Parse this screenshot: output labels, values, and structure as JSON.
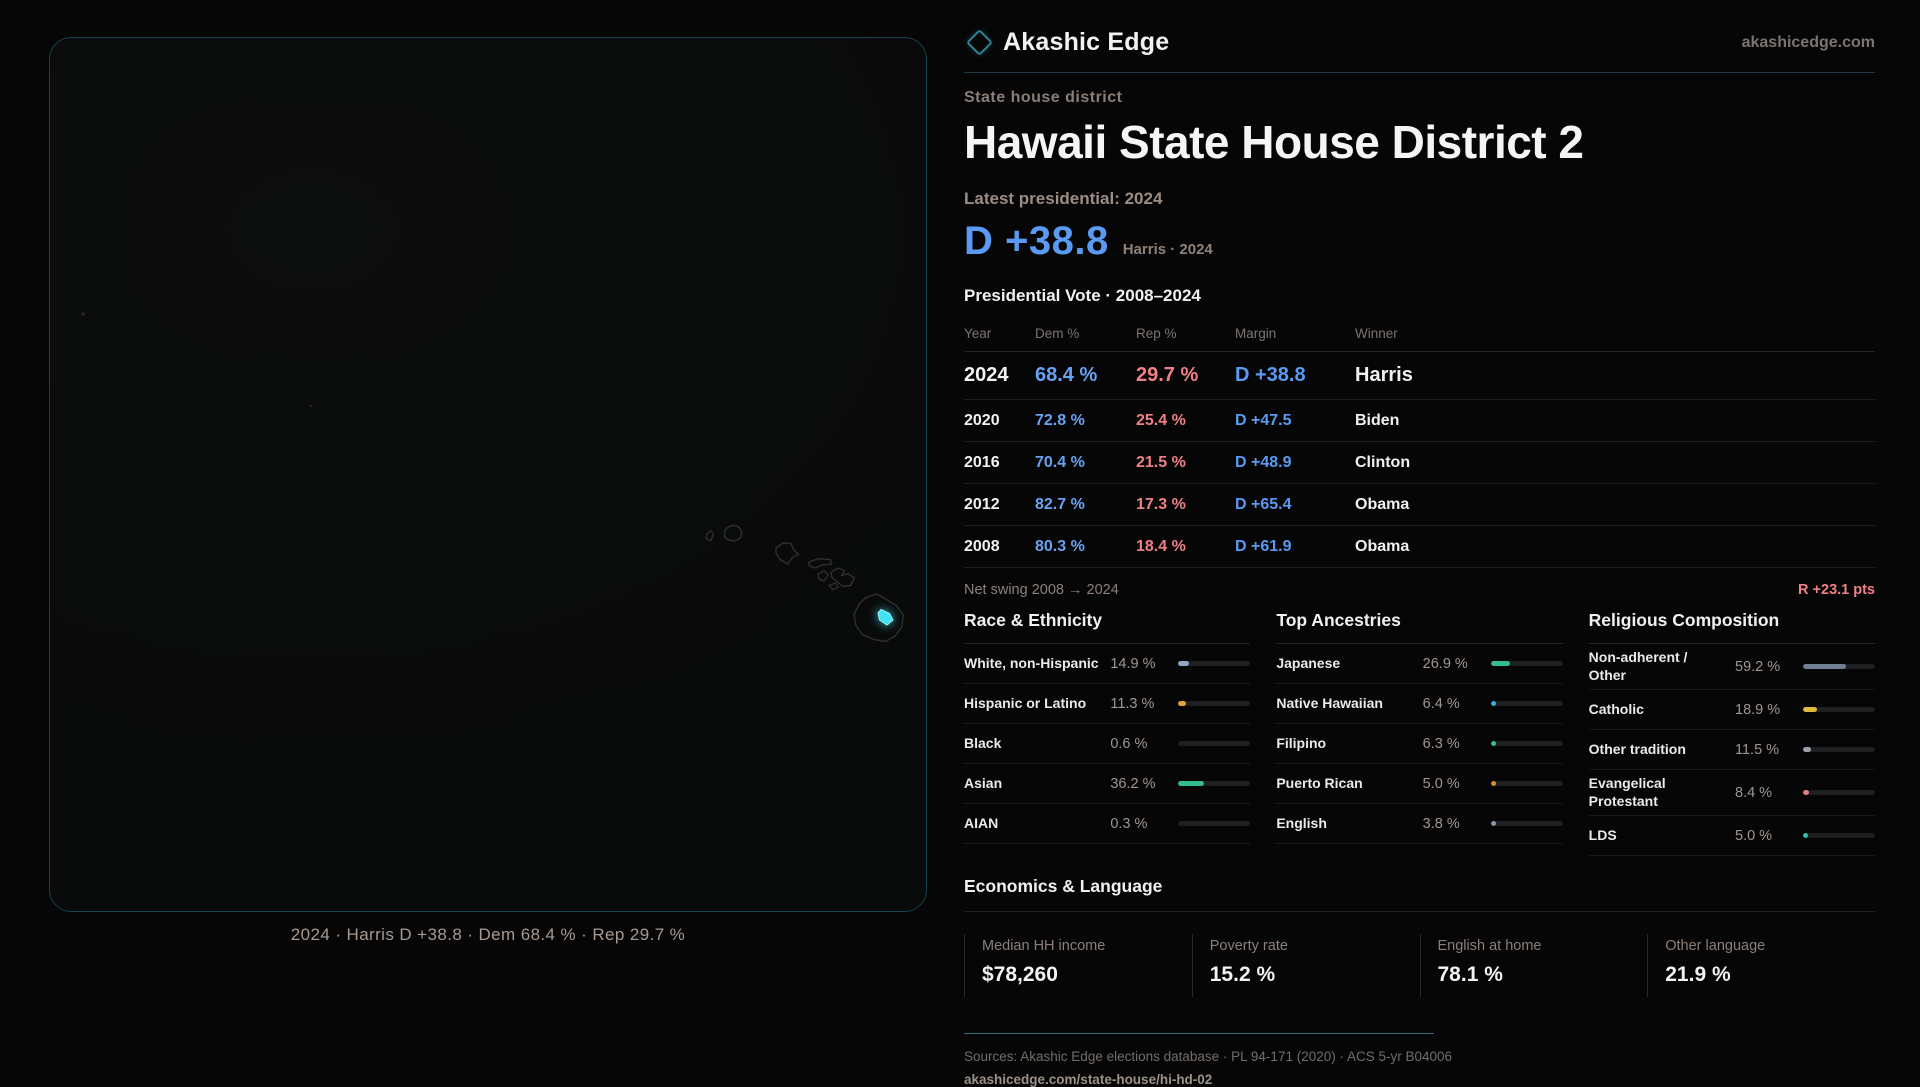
{
  "brand": {
    "name": "Akashic Edge",
    "domain": "akashicedge.com"
  },
  "map": {
    "caption": "2024 · Harris D +38.8 · Dem 68.4 % · Rep 29.7 %",
    "highlight_color": "#3fe3f2",
    "outline_color": "#2e2f30"
  },
  "header": {
    "eyebrow": "State house district",
    "title": "Hawaii State House District 2",
    "latest_label": "Latest presidential: 2024",
    "margin_big": "D +38.8",
    "margin_sub": "Harris · 2024"
  },
  "pres_table": {
    "title": "Presidential Vote · 2008–2024",
    "columns": {
      "year": "Year",
      "dem": "Dem %",
      "rep": "Rep %",
      "margin": "Margin",
      "winner": "Winner"
    },
    "rows": [
      {
        "year": "2024",
        "dem": "68.4 %",
        "rep": "29.7 %",
        "margin": "D +38.8",
        "winner": "Harris"
      },
      {
        "year": "2020",
        "dem": "72.8 %",
        "rep": "25.4 %",
        "margin": "D +47.5",
        "winner": "Biden"
      },
      {
        "year": "2016",
        "dem": "70.4 %",
        "rep": "21.5 %",
        "margin": "D +48.9",
        "winner": "Clinton"
      },
      {
        "year": "2012",
        "dem": "82.7 %",
        "rep": "17.3 %",
        "margin": "D +65.4",
        "winner": "Obama"
      },
      {
        "year": "2008",
        "dem": "80.3 %",
        "rep": "18.4 %",
        "margin": "D +61.9",
        "winner": "Obama"
      }
    ]
  },
  "net_swing": {
    "label": "Net swing 2008 → 2024",
    "value": "R +23.1 pts"
  },
  "demographics": {
    "race": {
      "title": "Race & Ethnicity",
      "rows": [
        {
          "label": "White, non-Hispanic",
          "value": "14.9 %",
          "pct": 14.9,
          "color": "#8fa8c8"
        },
        {
          "label": "Hispanic or Latino",
          "value": "11.3 %",
          "pct": 11.3,
          "color": "#e0a33c"
        },
        {
          "label": "Black",
          "value": "0.6 %",
          "pct": 0.6,
          "color": "#6b7280"
        },
        {
          "label": "Asian",
          "value": "36.2 %",
          "pct": 36.2,
          "color": "#34bd8b"
        },
        {
          "label": "AIAN",
          "value": "0.3 %",
          "pct": 0.3,
          "color": "#6b7280"
        }
      ]
    },
    "ancestries": {
      "title": "Top Ancestries",
      "rows": [
        {
          "label": "Japanese",
          "value": "26.9 %",
          "pct": 26.9,
          "color": "#34bd8b"
        },
        {
          "label": "Native Hawaiian",
          "value": "6.4 %",
          "pct": 6.4,
          "color": "#38b0d8"
        },
        {
          "label": "Filipino",
          "value": "6.3 %",
          "pct": 6.3,
          "color": "#3dbd7a"
        },
        {
          "label": "Puerto Rican",
          "value": "5.0 %",
          "pct": 5.0,
          "color": "#d88e35"
        },
        {
          "label": "English",
          "value": "3.8 %",
          "pct": 3.8,
          "color": "#8a98ac"
        }
      ]
    },
    "religion": {
      "title": "Religious Composition",
      "rows": [
        {
          "label": "Non-adherent / Other",
          "value": "59.2 %",
          "pct": 59.2,
          "color": "#727f93"
        },
        {
          "label": "Catholic",
          "value": "18.9 %",
          "pct": 18.9,
          "color": "#e3b83e"
        },
        {
          "label": "Other tradition",
          "value": "11.5 %",
          "pct": 11.5,
          "color": "#9aa2ad"
        },
        {
          "label": "Evangelical Protestant",
          "value": "8.4 %",
          "pct": 8.4,
          "color": "#e27d80"
        },
        {
          "label": "LDS",
          "value": "5.0 %",
          "pct": 5.0,
          "color": "#2fc0ad"
        }
      ]
    }
  },
  "economics": {
    "title": "Economics & Language",
    "stats": [
      {
        "label": "Median HH income",
        "value": "$78,260"
      },
      {
        "label": "Poverty rate",
        "value": "15.2 %"
      },
      {
        "label": "English at home",
        "value": "78.1 %"
      },
      {
        "label": "Other language",
        "value": "21.9 %"
      }
    ]
  },
  "footer": {
    "sources": "Sources: Akashic Edge elections database · PL 94-171 (2020) · ACS 5-yr B04006",
    "permalink": "akashicedge.com/state-house/hi-hd-02"
  },
  "colors": {
    "dem_blue": "#5a9af3",
    "rep_red": "#ef8086",
    "brand_teal": "#2e8396",
    "panel_border_teal": "#16434d",
    "background": "#060607"
  }
}
